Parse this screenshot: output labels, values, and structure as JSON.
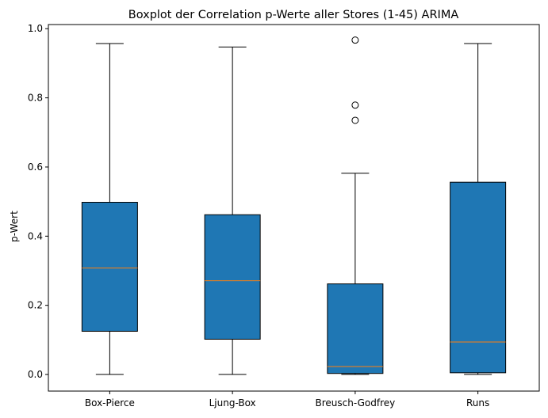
{
  "chart_data": {
    "type": "boxplot",
    "title": "Boxplot der Correlation p-Werte aller Stores (1-45) ARIMA",
    "xlabel": "",
    "ylabel": "p-Wert",
    "ylim": [
      -0.048,
      1.012
    ],
    "yticks": [
      0.0,
      0.2,
      0.4,
      0.6,
      0.8,
      1.0
    ],
    "ytick_labels": [
      "0.0",
      "0.2",
      "0.4",
      "0.6",
      "0.8",
      "1.0"
    ],
    "grid": false,
    "box_color": "#1f77b4",
    "median_color": "#ff7f0e",
    "categories": [
      "Box-Pierce",
      "Ljung-Box",
      "Breusch-Godfrey",
      "Runs"
    ],
    "boxes": [
      {
        "label": "Box-Pierce",
        "whisker_low": 0.0,
        "q1": 0.125,
        "median": 0.308,
        "q3": 0.498,
        "whisker_high": 0.957,
        "outliers": []
      },
      {
        "label": "Ljung-Box",
        "whisker_low": 0.0,
        "q1": 0.102,
        "median": 0.271,
        "q3": 0.462,
        "whisker_high": 0.947,
        "outliers": []
      },
      {
        "label": "Breusch-Godfrey",
        "whisker_low": 0.0,
        "q1": 0.003,
        "median": 0.023,
        "q3": 0.262,
        "whisker_high": 0.582,
        "outliers": [
          0.735,
          0.779,
          0.967
        ]
      },
      {
        "label": "Runs",
        "whisker_low": 0.0,
        "q1": 0.005,
        "median": 0.094,
        "q3": 0.556,
        "whisker_high": 0.957,
        "outliers": []
      }
    ]
  }
}
